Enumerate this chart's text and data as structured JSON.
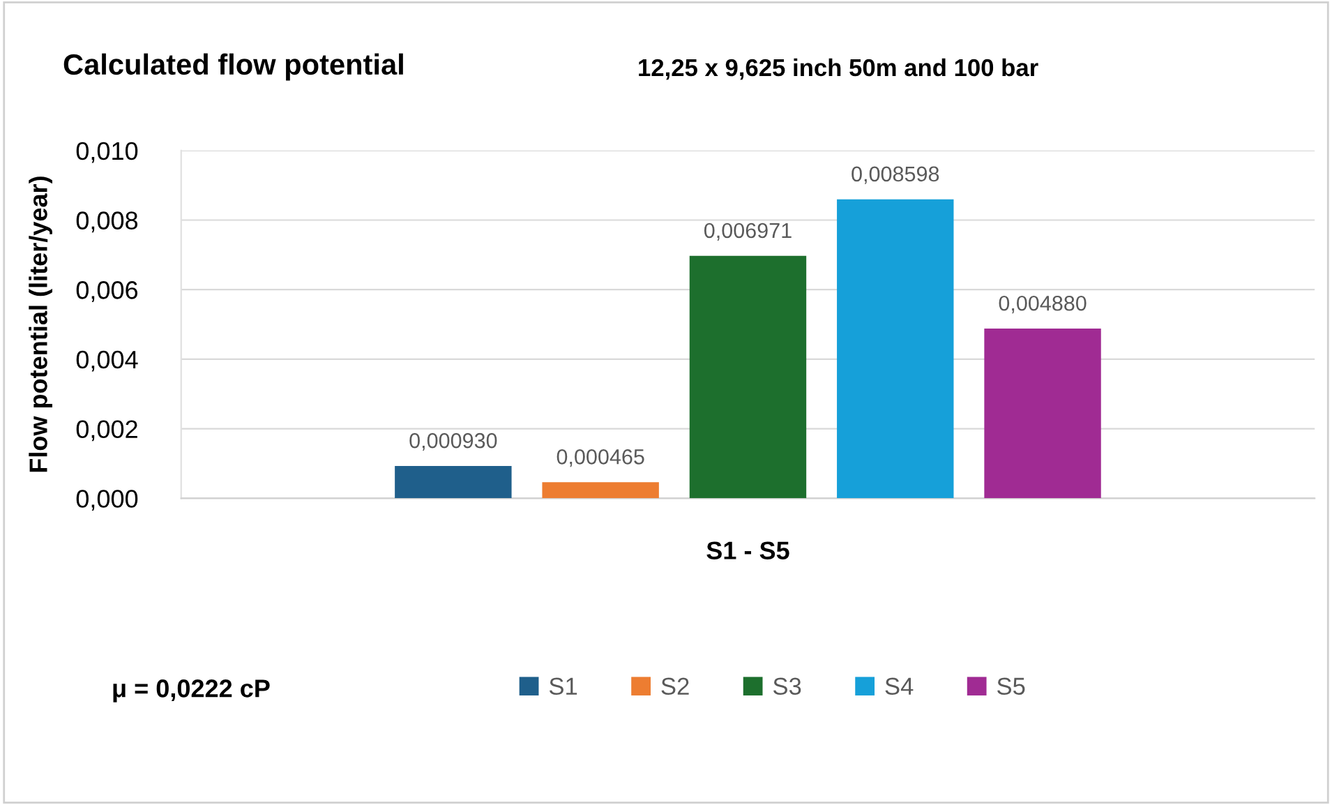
{
  "chart_data": {
    "type": "bar",
    "title": "Calculated flow potential",
    "subtitle": "12,25 x 9,625 inch 50m and 100 bar",
    "ylabel": "Flow potential (liter/year)",
    "categories": [
      "S1 - S5"
    ],
    "series": [
      {
        "name": "S1",
        "color": "#1f5f8b",
        "values": [
          0.00093
        ],
        "value_labels": [
          "0,000930"
        ]
      },
      {
        "name": "S2",
        "color": "#ed7d31",
        "values": [
          0.000465
        ],
        "value_labels": [
          "0,000465"
        ]
      },
      {
        "name": "S3",
        "color": "#1d6f2d",
        "values": [
          0.006971
        ],
        "value_labels": [
          "0,006971"
        ]
      },
      {
        "name": "S4",
        "color": "#16a0d9",
        "values": [
          0.008598
        ],
        "value_labels": [
          "0,008598"
        ]
      },
      {
        "name": "S5",
        "color": "#a02b93",
        "values": [
          0.00488
        ],
        "value_labels": [
          "0,004880"
        ]
      }
    ],
    "ylim": [
      0,
      0.01
    ],
    "yticks": [
      {
        "value": 0,
        "label": "0,000"
      },
      {
        "value": 0.002,
        "label": "0,002"
      },
      {
        "value": 0.004,
        "label": "0,004"
      },
      {
        "value": 0.006,
        "label": "0,006"
      },
      {
        "value": 0.008,
        "label": "0,008"
      },
      {
        "value": 0.01,
        "label": "0,010"
      }
    ],
    "grid": "y",
    "legend": "bottom",
    "annotations": [
      "μ = 0,0222 cP"
    ]
  }
}
